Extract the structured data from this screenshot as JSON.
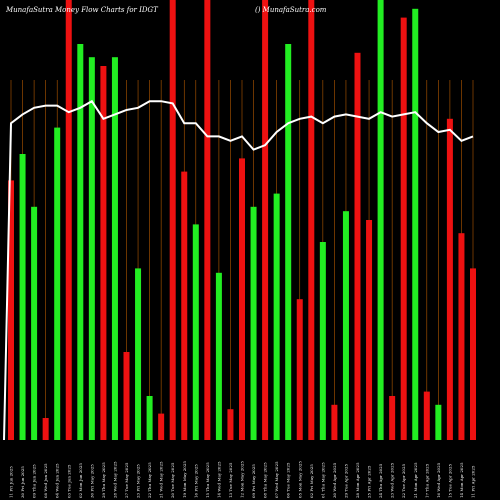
{
  "header": {
    "title": "MunafaSutra  Money Flow  Charts for IDGT",
    "source": "() MunafaSutra.com"
  },
  "colors": {
    "background": "#000000",
    "up": "#22ee22",
    "down": "#ee1111",
    "line": "#ffffff",
    "grid": "#b35900",
    "text": "#ffffff"
  },
  "chart_data": {
    "type": "bar",
    "title": "MunafaSutra  Money Flow  Charts for IDGT",
    "ylim": [
      0,
      100
    ],
    "grid": "vertical lines at each bar",
    "categories": [
      "11 Fri Jun 2025",
      "30 Fri Jun 2025",
      "09 Thu Jun 2025",
      "08 Wed Jun 2025",
      "04 Wed Jun 2025",
      "03 Tue Jun 2025",
      "02 Mon Jun 2025",
      "30 Fri May 2025",
      "29 Thu May 2025",
      "28 Wed May 2025",
      "27 Tue May 2025",
      "23 Fri May 2025",
      "22 Thu May 2025",
      "21 Wed May 2025",
      "20 Tue May 2025",
      "19 Mon May 2025",
      "16 Fri May 2025",
      "15 Thu May 2025",
      "14 Wed May 2025",
      "13 Tue May 2025",
      "12 Mon May 2025",
      "09 Fri May 2025",
      "08 Thu May 2025",
      "07 Wed May 2025",
      "06 Tue May 2025",
      "05 Mon May 2025",
      "02 Fri May 2025",
      "01 Thu May 2025",
      "30 Wed Apr 2025",
      "29 Tue Apr 2025",
      "28 Mon Apr 2025",
      "25 Fri Apr 2025",
      "24 Thu Apr 2025",
      "23 Wed Apr 2025",
      "22 Tue Apr 2025",
      "21 Mon Apr 2025",
      "17 Thu Apr 2025",
      "16 Wed Apr 2025",
      "15 Tue Apr 2025",
      "14 Mon Apr 2025",
      "11 Fri Apr 2025"
    ],
    "values": [
      59,
      65,
      53,
      5,
      71,
      100,
      90,
      87,
      85,
      87,
      20,
      39,
      10,
      6,
      100,
      61,
      49,
      100,
      38,
      7,
      64,
      53,
      100,
      56,
      90,
      32,
      100,
      45,
      8,
      52,
      88,
      50,
      100,
      10,
      96,
      98,
      11,
      8,
      73,
      47,
      39
    ],
    "directions": [
      "down",
      "up",
      "up",
      "down",
      "up",
      "down",
      "up",
      "up",
      "down",
      "up",
      "down",
      "up",
      "up",
      "down",
      "down",
      "down",
      "up",
      "down",
      "up",
      "down",
      "down",
      "up",
      "down",
      "up",
      "up",
      "down",
      "down",
      "up",
      "down",
      "up",
      "down",
      "down",
      "up",
      "down",
      "down",
      "up",
      "down",
      "up",
      "down",
      "down",
      "down"
    ],
    "line_values": [
      72,
      74,
      75.5,
      76,
      76,
      74.5,
      75.5,
      77,
      73,
      74,
      75,
      75.5,
      77,
      77,
      76.5,
      72,
      72,
      69,
      69,
      68,
      69,
      66,
      67,
      70,
      72,
      73,
      73.5,
      72,
      73.5,
      74,
      73.5,
      73,
      74.5,
      73.5,
      74,
      74.5,
      72,
      70,
      70.5,
      68,
      69
    ]
  }
}
